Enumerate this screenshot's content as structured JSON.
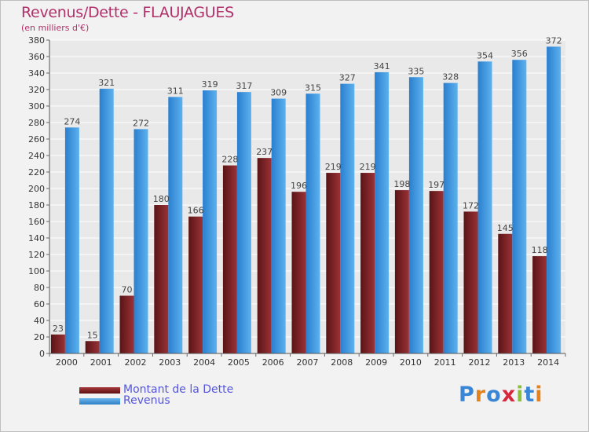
{
  "chart_data": {
    "type": "bar",
    "title": "Revenus/Dette - FLAUJAGUES",
    "subtitle": "(en milliers d'€)",
    "categories": [
      "2000",
      "2001",
      "2002",
      "2003",
      "2004",
      "2005",
      "2006",
      "2007",
      "2008",
      "2009",
      "2010",
      "2011",
      "2012",
      "2013",
      "2014"
    ],
    "series": [
      {
        "name": "Montant de la Dette",
        "values": [
          23,
          15,
          70,
          180,
          166,
          228,
          237,
          196,
          219,
          219,
          198,
          197,
          172,
          145,
          118
        ],
        "color": "#7a1f22"
      },
      {
        "name": "Revenus",
        "values": [
          274,
          321,
          272,
          311,
          319,
          317,
          309,
          315,
          327,
          341,
          335,
          328,
          354,
          356,
          372
        ],
        "color": "#4a9fe3"
      }
    ],
    "ylim": [
      0,
      380
    ],
    "yticks": [
      0,
      20,
      40,
      60,
      80,
      100,
      120,
      140,
      160,
      180,
      200,
      220,
      240,
      260,
      280,
      300,
      320,
      340,
      360,
      380
    ],
    "grid": true,
    "legend_position": "bottom-left"
  },
  "logo": {
    "text": "Proxiti",
    "colors": [
      "#3a86d6",
      "#e2831f",
      "#3a86d6",
      "#d6273f",
      "#8bc03a",
      "#3a86d6",
      "#e2831f"
    ]
  }
}
